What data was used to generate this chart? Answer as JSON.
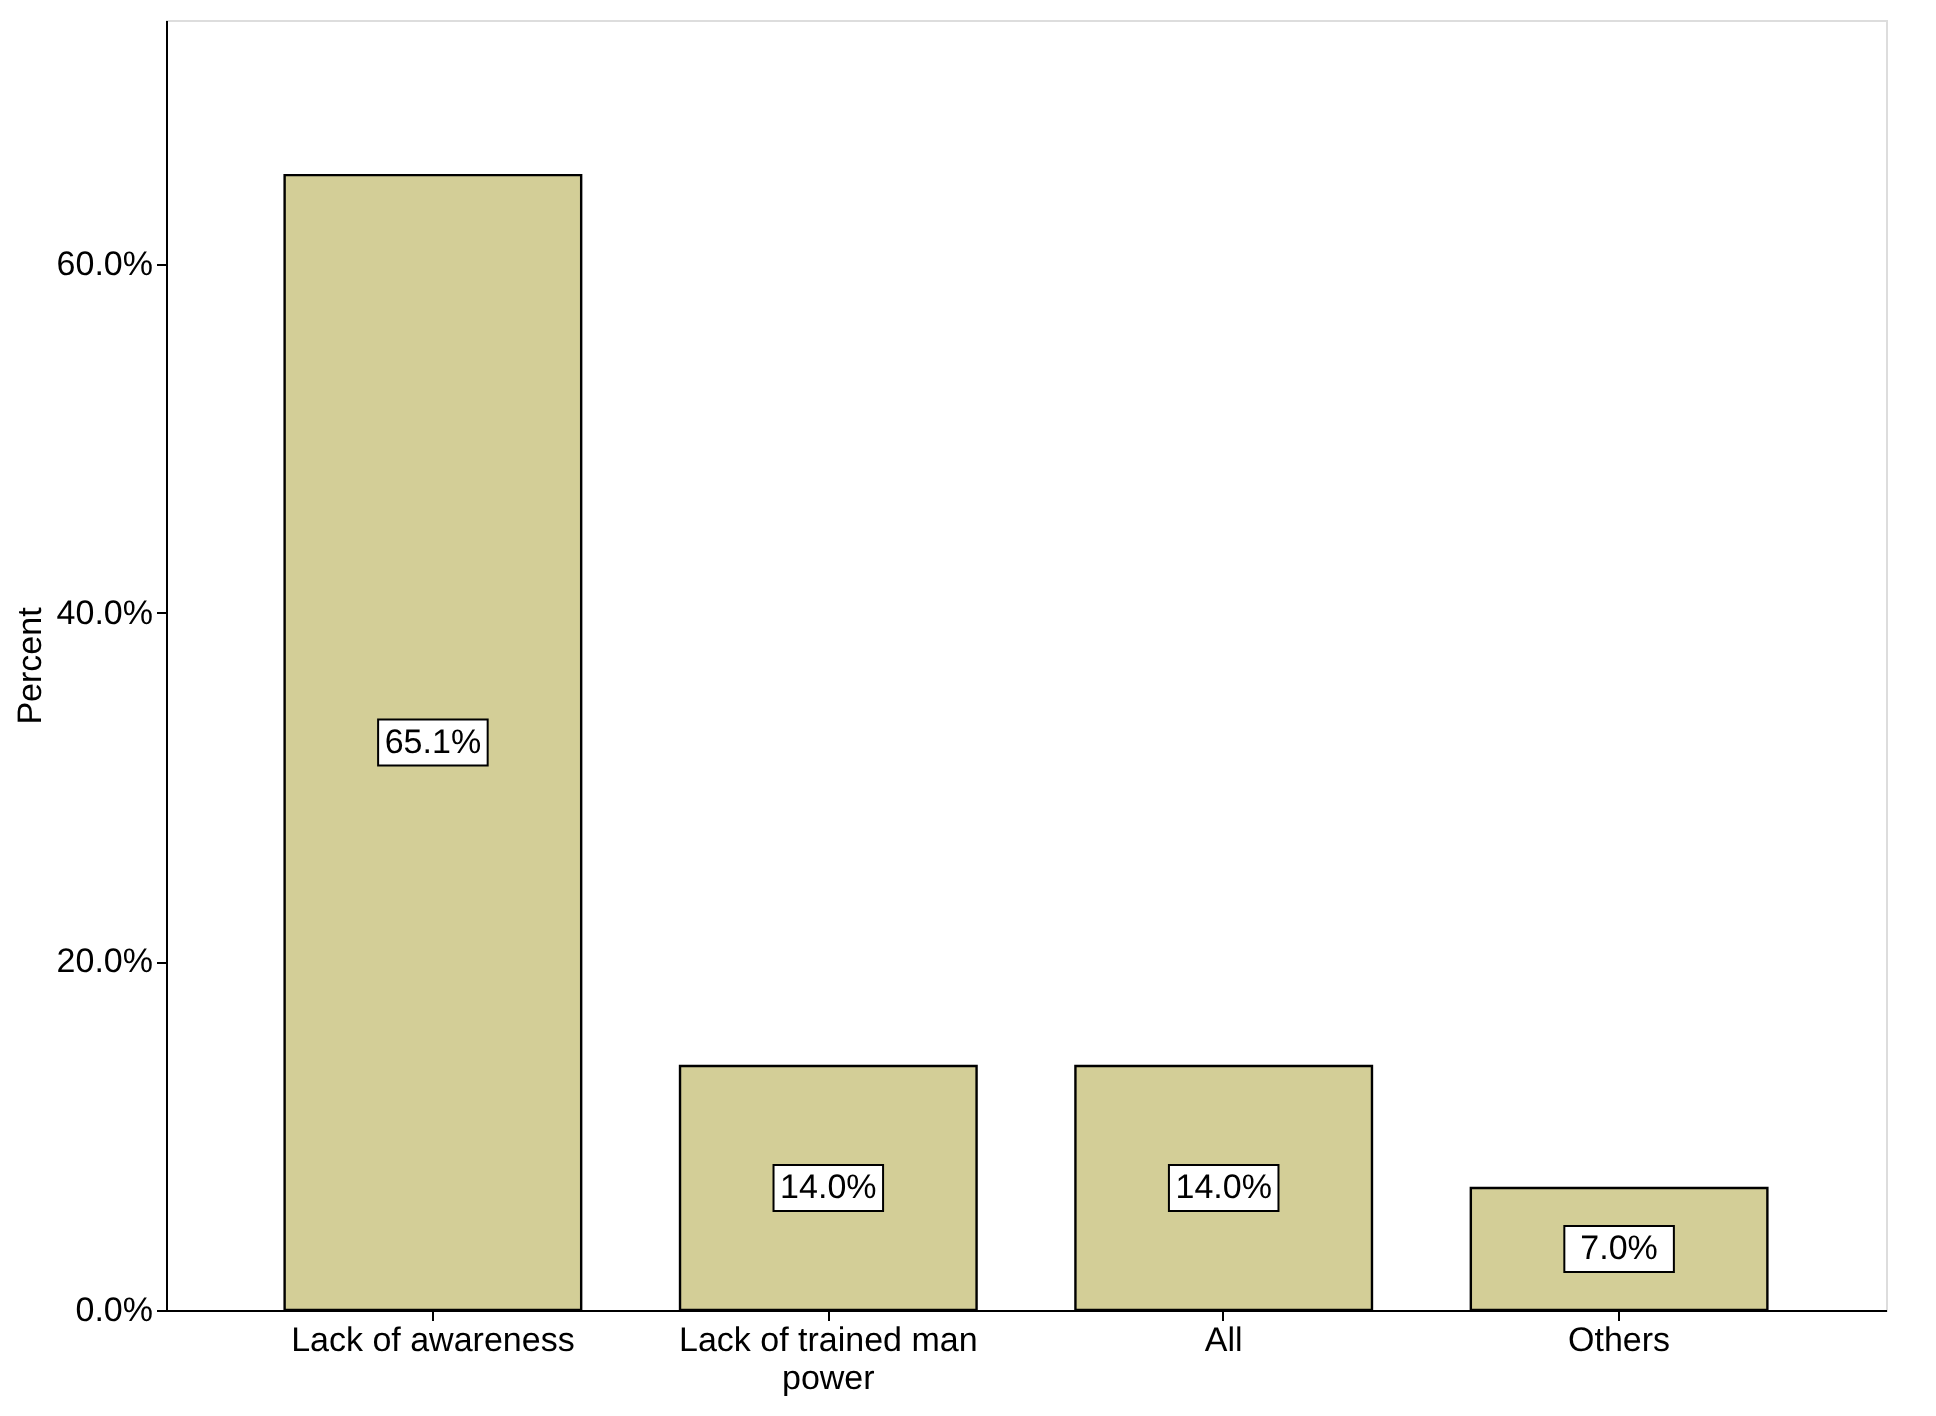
{
  "chart_data": {
    "type": "bar",
    "categories": [
      "Lack of awareness",
      "Lack of trained man power",
      "All",
      "Others"
    ],
    "values": [
      65.1,
      14.0,
      14.0,
      7.0
    ],
    "value_labels": [
      "65.1%",
      "14.0%",
      "14.0%",
      "7.0%"
    ],
    "color": "#d3ce97",
    "ylabel": "Percent",
    "ylim": [
      0,
      74
    ],
    "yticks": [
      {
        "value": 0,
        "label": "0.0%"
      },
      {
        "value": 20,
        "label": "20.0%"
      },
      {
        "value": 40,
        "label": "40.0%"
      },
      {
        "value": 60,
        "label": "60.0%"
      }
    ],
    "grid": false
  }
}
